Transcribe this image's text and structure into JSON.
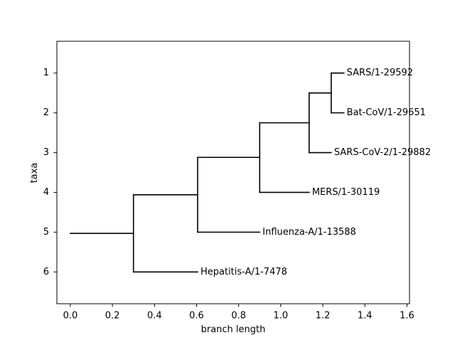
{
  "chart_data": {
    "type": "phylogenetic-tree",
    "xlabel": "branch length",
    "ylabel": "taxa",
    "xlim": [
      -0.064,
      1.612
    ],
    "ylim": [
      6.8,
      0.2
    ],
    "xticks": [
      0.0,
      0.2,
      0.4,
      0.6,
      0.8,
      1.0,
      1.2,
      1.4,
      1.6
    ],
    "xtick_labels": [
      "0.0",
      "0.2",
      "0.4",
      "0.6",
      "0.8",
      "1.0",
      "1.2",
      "1.4",
      "1.6"
    ],
    "yticks": [
      1,
      2,
      3,
      4,
      5,
      6
    ],
    "ytick_labels": [
      "1",
      "2",
      "3",
      "4",
      "5",
      "6"
    ],
    "grid": false,
    "line_color": "#000000",
    "root_x": 0.0,
    "root_y": 5.03,
    "internal_nodes": [
      {
        "x": 0.3,
        "y_span": [
          4.06,
          6.0
        ]
      },
      {
        "x": 0.605,
        "y_span": [
          3.12,
          5.0
        ]
      },
      {
        "x": 0.9,
        "y_span": [
          2.25,
          4.0
        ]
      },
      {
        "x": 1.135,
        "y_span": [
          1.5,
          3.0
        ]
      },
      {
        "x": 1.24,
        "y_span": [
          1.0,
          2.0
        ]
      }
    ],
    "leaves": [
      {
        "name": "SARS/1-29592",
        "y": 1,
        "x_start": 1.24,
        "x_end": 1.3
      },
      {
        "name": "Bat-CoV/1-29651",
        "y": 2,
        "x_start": 1.24,
        "x_end": 1.3
      },
      {
        "name": "SARS-CoV-2/1-29882",
        "y": 3,
        "x_start": 1.135,
        "x_end": 1.24
      },
      {
        "name": "MERS/1-30119",
        "y": 4,
        "x_start": 0.9,
        "x_end": 1.135
      },
      {
        "name": "Influenza-A/1-13588",
        "y": 5,
        "x_start": 0.605,
        "x_end": 0.9
      },
      {
        "name": "Hepatitis-A/1-7478",
        "y": 6,
        "x_start": 0.3,
        "x_end": 0.605
      }
    ],
    "stems": [
      {
        "y": 5.03,
        "x_start": 0.0,
        "x_end": 0.3
      },
      {
        "y": 4.06,
        "x_start": 0.3,
        "x_end": 0.605
      },
      {
        "y": 3.12,
        "x_start": 0.605,
        "x_end": 0.9
      },
      {
        "y": 2.25,
        "x_start": 0.9,
        "x_end": 1.135
      },
      {
        "y": 1.5,
        "x_start": 1.135,
        "x_end": 1.24
      }
    ]
  }
}
